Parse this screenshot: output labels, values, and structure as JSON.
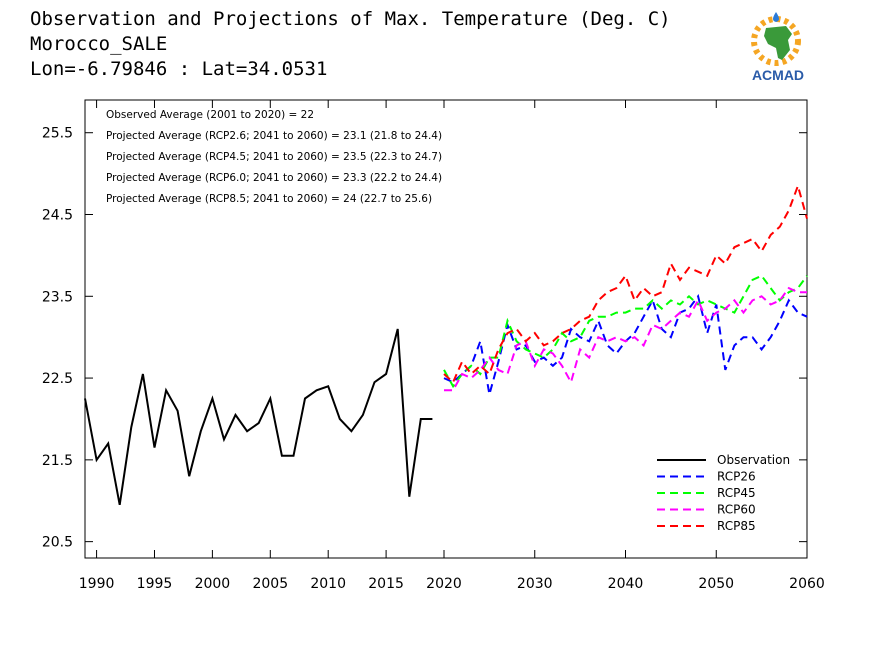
{
  "header": {
    "title": "Observation and Projections of Max. Temperature (Deg. C)",
    "location": "Morocco_SALE",
    "coords": "Lon=-6.79846 : Lat=34.0531"
  },
  "logo": {
    "text": "ACMAD",
    "icon": "africa-sun-logo-icon"
  },
  "chart_data": {
    "type": "line",
    "title": "Observation and Projections of Max. Temperature (Deg. C)",
    "xlabel": "",
    "ylabel": "",
    "x_axis": {
      "range": [
        1989,
        2060
      ],
      "ticks": [
        1990,
        1995,
        2000,
        2005,
        2010,
        2015,
        2020,
        2030,
        2040,
        2050,
        2060
      ],
      "note": "1990-2020 compressed scale, 2020-2060 scale"
    },
    "y_axis": {
      "range": [
        20.3,
        25.9
      ],
      "ticks": [
        20.5,
        21.5,
        22.5,
        23.5,
        24.5,
        25.5
      ]
    },
    "legend_position": "bottom-right",
    "annotations": [
      "Observed Average (2001 to 2020) = 22",
      "Projected Average (RCP2.6; 2041 to 2060) = 23.1 (21.8 to 24.4)",
      "Projected Average (RCP4.5; 2041 to 2060) = 23.5 (22.3 to 24.7)",
      "Projected Average (RCP6.0; 2041 to 2060) = 23.3 (22.2 to 24.4)",
      "Projected Average (RCP8.5; 2041 to 2060) = 24 (22.7 to 25.6)"
    ],
    "series": [
      {
        "name": "Observation",
        "color": "#000000",
        "dash": "solid",
        "x": [
          1989,
          1990,
          1991,
          1992,
          1993,
          1994,
          1995,
          1996,
          1997,
          1998,
          1999,
          2000,
          2001,
          2002,
          2003,
          2004,
          2005,
          2006,
          2007,
          2008,
          2009,
          2010,
          2011,
          2012,
          2013,
          2014,
          2015,
          2016,
          2017,
          2018,
          2019
        ],
        "y": [
          22.25,
          21.5,
          21.7,
          20.95,
          21.9,
          22.55,
          21.65,
          22.35,
          22.1,
          21.3,
          21.85,
          22.25,
          21.75,
          22.05,
          21.85,
          21.95,
          22.25,
          21.55,
          21.55,
          22.25,
          22.35,
          22.4,
          22.0,
          21.85,
          22.05,
          22.45,
          22.55,
          23.1,
          21.05,
          22.0,
          22.0
        ]
      },
      {
        "name": "RCP26",
        "color": "#0000ff",
        "dash": "dashed",
        "x": [
          2020,
          2021,
          2022,
          2023,
          2024,
          2025,
          2026,
          2027,
          2028,
          2029,
          2030,
          2031,
          2032,
          2033,
          2034,
          2035,
          2036,
          2037,
          2038,
          2039,
          2040,
          2041,
          2042,
          2043,
          2044,
          2045,
          2046,
          2047,
          2048,
          2049,
          2050,
          2051,
          2052,
          2053,
          2054,
          2055,
          2056,
          2057,
          2058,
          2059,
          2060
        ],
        "y": [
          22.5,
          22.45,
          22.55,
          22.65,
          22.95,
          22.3,
          22.7,
          23.15,
          22.85,
          22.9,
          22.7,
          22.75,
          22.65,
          22.75,
          23.1,
          23.0,
          22.95,
          23.2,
          22.9,
          22.8,
          22.95,
          23.05,
          23.25,
          23.45,
          23.1,
          23.0,
          23.3,
          23.35,
          23.5,
          23.05,
          23.4,
          22.6,
          22.9,
          23.0,
          23.0,
          22.85,
          23.0,
          23.2,
          23.45,
          23.3,
          23.25
        ]
      },
      {
        "name": "RCP45",
        "color": "#00ff00",
        "dash": "dashed",
        "x": [
          2020,
          2021,
          2022,
          2023,
          2024,
          2025,
          2026,
          2027,
          2028,
          2029,
          2030,
          2031,
          2032,
          2033,
          2034,
          2035,
          2036,
          2037,
          2038,
          2039,
          2040,
          2041,
          2042,
          2043,
          2044,
          2045,
          2046,
          2047,
          2048,
          2049,
          2050,
          2051,
          2052,
          2053,
          2054,
          2055,
          2056,
          2057,
          2058,
          2059,
          2060
        ],
        "y": [
          22.6,
          22.4,
          22.55,
          22.65,
          22.55,
          22.75,
          22.75,
          23.2,
          22.95,
          22.85,
          22.8,
          22.75,
          22.85,
          23.05,
          22.95,
          23.0,
          23.2,
          23.25,
          23.25,
          23.3,
          23.3,
          23.35,
          23.35,
          23.45,
          23.35,
          23.45,
          23.4,
          23.5,
          23.4,
          23.45,
          23.4,
          23.35,
          23.3,
          23.5,
          23.7,
          23.75,
          23.6,
          23.45,
          23.55,
          23.6,
          23.75
        ]
      },
      {
        "name": "RCP60",
        "color": "#ff00ff",
        "dash": "dashed",
        "x": [
          2020,
          2021,
          2022,
          2023,
          2024,
          2025,
          2026,
          2027,
          2028,
          2029,
          2030,
          2031,
          2032,
          2033,
          2034,
          2035,
          2036,
          2037,
          2038,
          2039,
          2040,
          2041,
          2042,
          2043,
          2044,
          2045,
          2046,
          2047,
          2048,
          2049,
          2050,
          2051,
          2052,
          2053,
          2054,
          2055,
          2056,
          2057,
          2058,
          2059,
          2060
        ],
        "y": [
          22.35,
          22.35,
          22.55,
          22.5,
          22.6,
          22.75,
          22.6,
          22.55,
          22.9,
          22.95,
          22.65,
          22.85,
          22.8,
          22.65,
          22.45,
          22.85,
          22.75,
          23.0,
          22.95,
          23.0,
          22.95,
          23.0,
          22.9,
          23.15,
          23.1,
          23.2,
          23.3,
          23.25,
          23.45,
          23.2,
          23.3,
          23.35,
          23.45,
          23.3,
          23.45,
          23.5,
          23.4,
          23.45,
          23.6,
          23.55,
          23.55
        ]
      },
      {
        "name": "RCP85",
        "color": "#ff0000",
        "dash": "dashed",
        "x": [
          2020,
          2021,
          2022,
          2023,
          2024,
          2025,
          2026,
          2027,
          2028,
          2029,
          2030,
          2031,
          2032,
          2033,
          2034,
          2035,
          2036,
          2037,
          2038,
          2039,
          2040,
          2041,
          2042,
          2043,
          2044,
          2045,
          2046,
          2047,
          2048,
          2049,
          2050,
          2051,
          2052,
          2053,
          2054,
          2055,
          2056,
          2057,
          2058,
          2059,
          2060
        ],
        "y": [
          22.55,
          22.45,
          22.7,
          22.55,
          22.65,
          22.55,
          22.85,
          23.05,
          23.1,
          22.95,
          23.05,
          22.9,
          22.95,
          23.05,
          23.1,
          23.2,
          23.25,
          23.45,
          23.55,
          23.6,
          23.75,
          23.45,
          23.6,
          23.5,
          23.55,
          23.9,
          23.7,
          23.85,
          23.8,
          23.75,
          24.0,
          23.9,
          24.1,
          24.15,
          24.2,
          24.05,
          24.25,
          24.35,
          24.55,
          24.85,
          24.45
        ]
      }
    ]
  }
}
